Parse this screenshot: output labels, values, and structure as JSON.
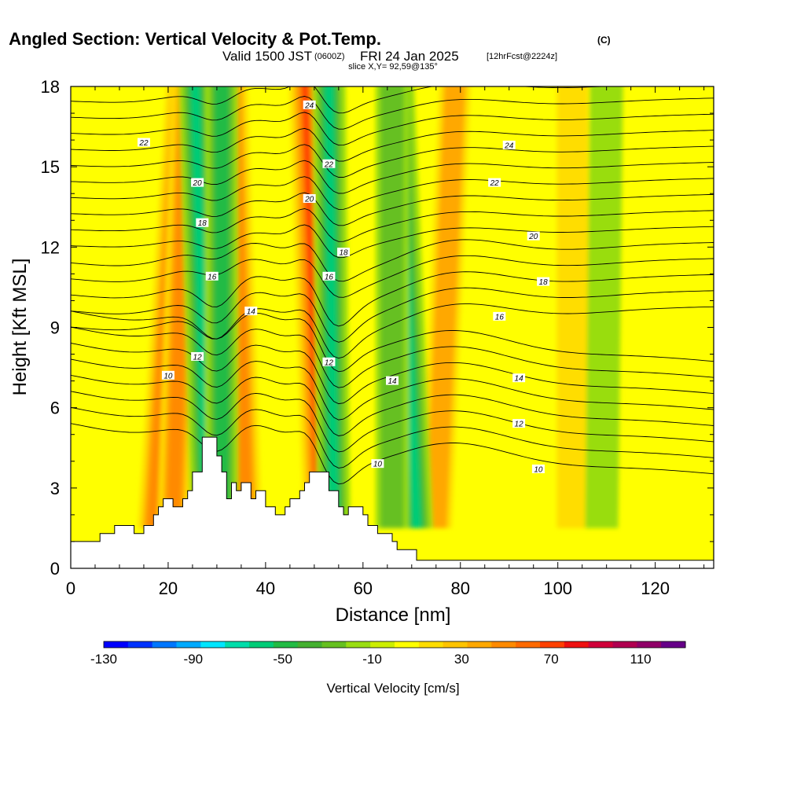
{
  "header": {
    "title": "Angled Section: Vertical Velocity & Pot.Temp.",
    "title_unit": "(C)",
    "sub_valid": "Valid 1500 JST",
    "sub_zulu": "(0600Z)",
    "sub_date": "FRI 24 Jan 2025",
    "sub_fcst": "[12hrFcst@2224z]",
    "slice": "slice X,Y= 92,59@135°"
  },
  "chart_data": {
    "type": "heatmap",
    "title": "Angled Section: Vertical Velocity & Pot.Temp.",
    "xlabel": "Distance [nm]",
    "ylabel": "Height [Kft MSL]",
    "xlim": [
      0,
      132
    ],
    "ylim": [
      0,
      18
    ],
    "xticks": [
      "0",
      "20",
      "40",
      "60",
      "80",
      "100",
      "120"
    ],
    "yticks": [
      "0",
      "3",
      "6",
      "9",
      "12",
      "15",
      "18"
    ],
    "colorbar": {
      "label": "Vertical Velocity [cm/s]",
      "range": [
        -130,
        130
      ],
      "tick_labels": [
        "-130",
        "-90",
        "-50",
        "-10",
        "30",
        "70",
        "110"
      ],
      "colors": [
        "#0000ff",
        "#0033ff",
        "#0077ff",
        "#00aaff",
        "#00e6ff",
        "#00ddaa",
        "#00cc77",
        "#22bb44",
        "#44b030",
        "#66c020",
        "#99dd11",
        "#ccee00",
        "#ffff00",
        "#ffdd00",
        "#ffc400",
        "#ffa800",
        "#ff8a00",
        "#ff6a00",
        "#ff4000",
        "#ee1010",
        "#d0003a",
        "#b00050",
        "#900068",
        "#660088"
      ]
    },
    "updraft_bands": [
      {
        "x_bottom": 17,
        "x_top": 23,
        "w": 55
      },
      {
        "x_bottom": 21,
        "x_top": 24,
        "w": 45
      },
      {
        "x_bottom": 36,
        "x_top": 33,
        "w": 45
      },
      {
        "x_bottom": 51,
        "x_top": 48,
        "w": 70
      },
      {
        "x_bottom": 75,
        "x_top": 79,
        "w": 30
      },
      {
        "x_bottom": 103,
        "x_top": 103,
        "w": 25
      }
    ],
    "downdraft_bands": [
      {
        "x_bottom": 28,
        "x_top": 25.5,
        "w": -60
      },
      {
        "x_bottom": 31,
        "x_top": 31,
        "w": -45
      },
      {
        "x_bottom": 54,
        "x_top": 53,
        "w": -60
      },
      {
        "x_bottom": 71,
        "x_top": 67,
        "w": -65
      },
      {
        "x_bottom": 66,
        "x_top": 66,
        "w": -30
      },
      {
        "x_bottom": 109,
        "x_top": 110,
        "w": -20
      }
    ],
    "isentrope_labels": [
      {
        "text": "22",
        "x": 15,
        "y": 15.9
      },
      {
        "text": "24",
        "x": 49,
        "y": 17.3
      },
      {
        "text": "24",
        "x": 90,
        "y": 15.8
      },
      {
        "text": "20",
        "x": 26,
        "y": 14.4
      },
      {
        "text": "22",
        "x": 53,
        "y": 15.1
      },
      {
        "text": "22",
        "x": 87,
        "y": 14.4
      },
      {
        "text": "20",
        "x": 49,
        "y": 13.8
      },
      {
        "text": "18",
        "x": 27,
        "y": 12.9
      },
      {
        "text": "20",
        "x": 95,
        "y": 12.4
      },
      {
        "text": "18",
        "x": 56,
        "y": 11.8
      },
      {
        "text": "16",
        "x": 29,
        "y": 10.9
      },
      {
        "text": "16",
        "x": 53,
        "y": 10.9
      },
      {
        "text": "18",
        "x": 97,
        "y": 10.7
      },
      {
        "text": "14",
        "x": 37,
        "y": 9.6
      },
      {
        "text": "16",
        "x": 88,
        "y": 9.4
      },
      {
        "text": "12",
        "x": 26,
        "y": 7.9
      },
      {
        "text": "12",
        "x": 53,
        "y": 7.7
      },
      {
        "text": "14",
        "x": 66,
        "y": 7.0
      },
      {
        "text": "14",
        "x": 92,
        "y": 7.1
      },
      {
        "text": "10",
        "x": 20,
        "y": 7.2
      },
      {
        "text": "12",
        "x": 92,
        "y": 5.4
      },
      {
        "text": "10",
        "x": 63,
        "y": 3.9
      },
      {
        "text": "10",
        "x": 96,
        "y": 3.7
      }
    ],
    "terrain": [
      [
        0,
        1.0
      ],
      [
        6,
        1.0
      ],
      [
        6,
        1.3
      ],
      [
        9,
        1.3
      ],
      [
        9,
        1.6
      ],
      [
        13,
        1.6
      ],
      [
        13,
        1.3
      ],
      [
        15,
        1.3
      ],
      [
        15,
        1.6
      ],
      [
        17,
        1.6
      ],
      [
        17,
        2.0
      ],
      [
        18,
        2.0
      ],
      [
        18,
        2.3
      ],
      [
        19,
        2.3
      ],
      [
        19,
        2.6
      ],
      [
        21,
        2.6
      ],
      [
        21,
        2.3
      ],
      [
        23,
        2.3
      ],
      [
        23,
        2.6
      ],
      [
        24,
        2.6
      ],
      [
        24,
        2.9
      ],
      [
        25,
        2.9
      ],
      [
        25,
        3.6
      ],
      [
        27,
        3.6
      ],
      [
        27,
        4.9
      ],
      [
        30,
        4.9
      ],
      [
        30,
        4.2
      ],
      [
        31,
        4.2
      ],
      [
        31,
        3.6
      ],
      [
        32,
        3.6
      ],
      [
        32,
        2.6
      ],
      [
        33,
        2.6
      ],
      [
        33,
        3.2
      ],
      [
        34,
        3.2
      ],
      [
        34,
        2.9
      ],
      [
        35,
        2.9
      ],
      [
        35,
        3.2
      ],
      [
        37,
        3.2
      ],
      [
        37,
        2.6
      ],
      [
        38,
        2.6
      ],
      [
        38,
        2.9
      ],
      [
        40,
        2.9
      ],
      [
        40,
        2.3
      ],
      [
        42,
        2.3
      ],
      [
        42,
        2.0
      ],
      [
        44,
        2.0
      ],
      [
        44,
        2.3
      ],
      [
        45,
        2.3
      ],
      [
        45,
        2.6
      ],
      [
        47,
        2.6
      ],
      [
        47,
        2.9
      ],
      [
        48,
        2.9
      ],
      [
        48,
        3.2
      ],
      [
        49,
        3.2
      ],
      [
        49,
        3.6
      ],
      [
        53,
        3.6
      ],
      [
        53,
        2.9
      ],
      [
        55,
        2.9
      ],
      [
        55,
        2.3
      ],
      [
        56,
        2.3
      ],
      [
        56,
        2.0
      ],
      [
        57,
        2.0
      ],
      [
        57,
        2.3
      ],
      [
        60,
        2.3
      ],
      [
        60,
        2.0
      ],
      [
        61,
        2.0
      ],
      [
        61,
        1.6
      ],
      [
        63,
        1.6
      ],
      [
        63,
        1.3
      ],
      [
        66,
        1.3
      ],
      [
        66,
        1.0
      ],
      [
        67,
        1.0
      ],
      [
        67,
        0.7
      ],
      [
        71,
        0.7
      ],
      [
        71,
        0.3
      ],
      [
        132,
        0.3
      ],
      [
        132,
        0
      ],
      [
        0,
        0
      ]
    ]
  }
}
